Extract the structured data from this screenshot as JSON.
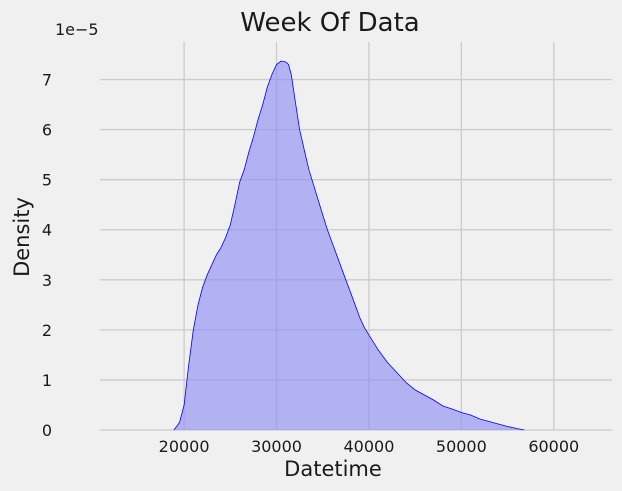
{
  "chart_data": {
    "type": "area",
    "title": "Week Of Data",
    "xlabel": "Datetime",
    "ylabel": "Density",
    "y_offset_label": "1e−5",
    "xlim": [
      10900,
      66300
    ],
    "ylim": [
      0,
      7.75
    ],
    "x_ticks": [
      20000,
      30000,
      40000,
      50000,
      60000
    ],
    "x_tick_labels": [
      "20000",
      "30000",
      "40000",
      "50000",
      "60000"
    ],
    "y_ticks": [
      0,
      1,
      2,
      3,
      4,
      5,
      6,
      7
    ],
    "y_tick_labels": [
      "0",
      "1",
      "2",
      "3",
      "4",
      "5",
      "6",
      "7"
    ],
    "grid": true,
    "colors": {
      "line": "#0000ff",
      "fill": "#8c8cf5",
      "grid": "#cbcbcb",
      "background": "#f0f0f0"
    },
    "series": [
      {
        "x": [
          18900,
          19500,
          20000,
          20500,
          21000,
          21500,
          22000,
          22500,
          23000,
          23500,
          24000,
          24500,
          25000,
          25500,
          26000,
          26500,
          27000,
          27500,
          28000,
          28500,
          29000,
          29500,
          30000,
          30500,
          31000,
          31300,
          31600,
          32000,
          32500,
          33000,
          33500,
          34000,
          34500,
          35000,
          35500,
          36000,
          36500,
          37000,
          37500,
          38000,
          38500,
          39000,
          39500,
          40000,
          41000,
          42000,
          43000,
          44000,
          45000,
          46000,
          47000,
          48000,
          49000,
          50000,
          51000,
          52000,
          53000,
          54000,
          55000,
          56000,
          56800
        ],
        "y": [
          0.0,
          0.15,
          0.5,
          1.3,
          2.0,
          2.5,
          2.85,
          3.1,
          3.3,
          3.5,
          3.65,
          3.85,
          4.1,
          4.5,
          4.95,
          5.2,
          5.55,
          5.85,
          6.2,
          6.5,
          6.85,
          7.1,
          7.3,
          7.37,
          7.35,
          7.3,
          7.1,
          6.6,
          6.0,
          5.6,
          5.2,
          4.9,
          4.6,
          4.3,
          4.0,
          3.75,
          3.5,
          3.25,
          3.0,
          2.75,
          2.5,
          2.25,
          2.05,
          1.9,
          1.6,
          1.35,
          1.15,
          0.95,
          0.8,
          0.7,
          0.6,
          0.48,
          0.42,
          0.35,
          0.3,
          0.22,
          0.17,
          0.12,
          0.07,
          0.03,
          0.0
        ]
      }
    ]
  }
}
